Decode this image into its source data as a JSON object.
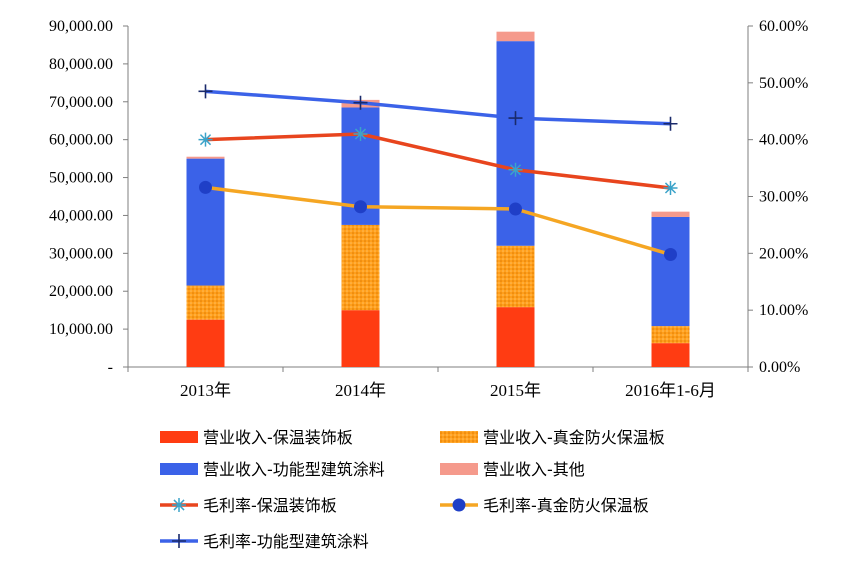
{
  "chart_data": {
    "type": "bar",
    "stacked": true,
    "categories": [
      "2013年",
      "2014年",
      "2015年",
      "2016年1-6月"
    ],
    "y_left": {
      "min": 0,
      "max": 90000,
      "step": 10000,
      "tick_labels": [
        "-",
        "10,000.00",
        "20,000.00",
        "30,000.00",
        "40,000.00",
        "50,000.00",
        "60,000.00",
        "70,000.00",
        "80,000.00",
        "90,000.00"
      ]
    },
    "y_right": {
      "min": 0,
      "max": 60,
      "step": 10,
      "tick_labels": [
        "0.00%",
        "10.00%",
        "20.00%",
        "30.00%",
        "40.00%",
        "50.00%",
        "60.00%"
      ]
    },
    "bar_series": [
      {
        "name": "营业收入-保温装饰板",
        "color": "#ff3c12",
        "values": [
          12500,
          15000,
          15800,
          6300
        ]
      },
      {
        "name": "营业收入-真金防火保温板",
        "color": "#ff9f1c",
        "pattern": "dots",
        "values": [
          9000,
          22500,
          16200,
          4500
        ]
      },
      {
        "name": "营业收入-功能型建筑涂料",
        "color": "#3b62e8",
        "values": [
          33500,
          31000,
          54000,
          28800
        ]
      },
      {
        "name": "营业收入-其他",
        "color": "#f59a8c",
        "values": [
          500,
          2000,
          2500,
          1400
        ]
      }
    ],
    "line_series": [
      {
        "name": "毛利率-保温装饰板",
        "color": "#e8451e",
        "marker": "asterisk",
        "marker_color": "#3ba3c9",
        "values": [
          40.0,
          41.0,
          34.7,
          31.5
        ]
      },
      {
        "name": "毛利率-真金防火保温板",
        "color": "#f5a623",
        "marker": "circle",
        "marker_color": "#1f3fc7",
        "values": [
          31.6,
          28.2,
          27.8,
          19.8
        ]
      },
      {
        "name": "毛利率-功能型建筑涂料",
        "color": "#3b62e8",
        "marker": "plus",
        "marker_color": "#1a2a6b",
        "values": [
          48.5,
          46.5,
          43.8,
          42.8
        ]
      }
    ],
    "legend_position": "bottom",
    "grid": false
  }
}
